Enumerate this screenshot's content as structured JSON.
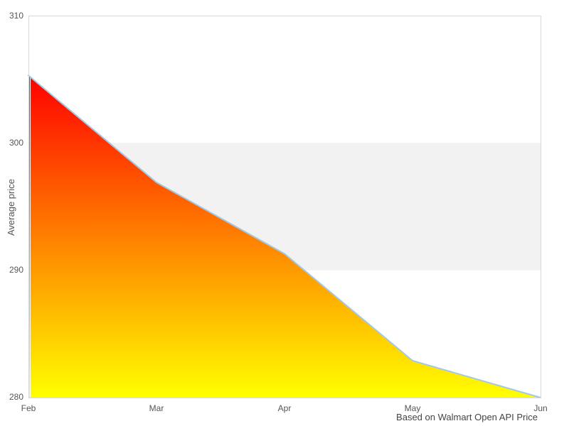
{
  "y_axis": {
    "title": "Average price",
    "tick_labels": [
      "310",
      "300",
      "290",
      "280"
    ]
  },
  "x_axis": {
    "tick_labels": [
      "Feb",
      "Mar",
      "Apr",
      "May",
      "Jun"
    ]
  },
  "caption": "Based on Walmart Open API Price",
  "colors": {
    "plot_band": "#f2f2f2",
    "plot_border": "#d8d8d8",
    "line": "#a4c8e1",
    "gradient_top": "#ff0000",
    "gradient_bottom": "#ffff00",
    "tick_text": "#555555",
    "caption_text": "#444444"
  },
  "chart_data": {
    "type": "area",
    "x": [
      "Feb",
      "Mar",
      "Apr",
      "May",
      "Jun"
    ],
    "values": [
      305.3,
      296.9,
      291.3,
      282.9,
      280.0
    ],
    "title": "",
    "xlabel": "",
    "ylabel": "Average price",
    "ylim": [
      280,
      310
    ],
    "y_ticks": [
      310,
      300,
      290,
      280
    ],
    "plot_band": {
      "from": 290,
      "to": 300,
      "color": "#f2f2f2"
    },
    "area_gradient": {
      "top": "#ff0000",
      "bottom": "#ffff00"
    },
    "line_color": "#a4c8e1",
    "grid": false,
    "legend": false,
    "caption": "Based on Walmart Open API Price"
  }
}
